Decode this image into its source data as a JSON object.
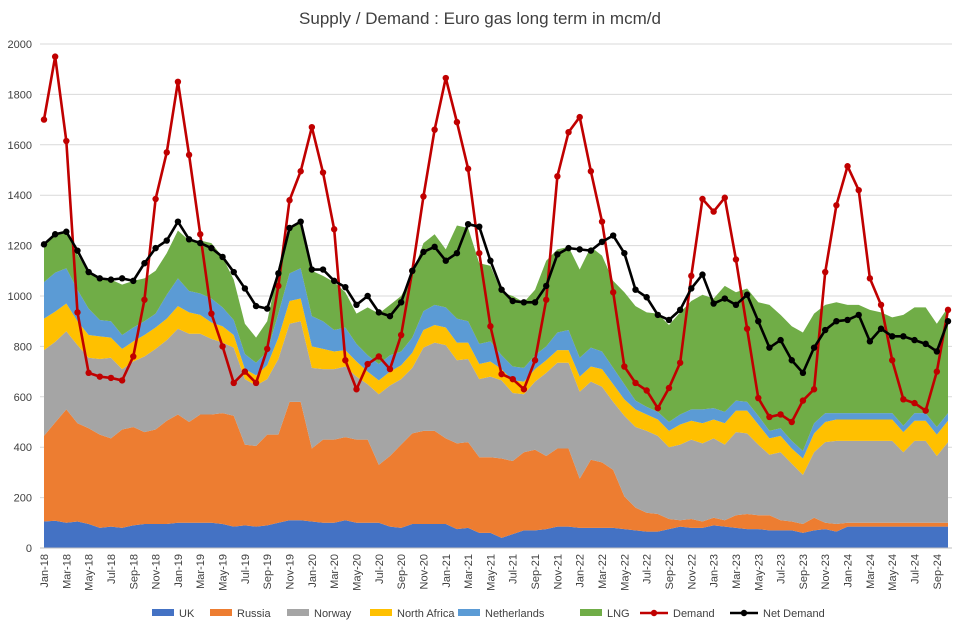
{
  "chart_data": {
    "type": "area",
    "title": "Supply / Demand : Euro gas long term in mcm/d",
    "xlabel": "",
    "ylabel": "",
    "ylim": [
      0,
      2000
    ],
    "yticks": [
      0,
      200,
      400,
      600,
      800,
      1000,
      1200,
      1400,
      1600,
      1800,
      2000
    ],
    "grid": true,
    "legend_position": "bottom",
    "x": [
      "Jan-18",
      "Feb-18",
      "Mar-18",
      "Apr-18",
      "May-18",
      "Jun-18",
      "Jul-18",
      "Aug-18",
      "Sep-18",
      "Oct-18",
      "Nov-18",
      "Dec-18",
      "Jan-19",
      "Feb-19",
      "Mar-19",
      "Apr-19",
      "May-19",
      "Jun-19",
      "Jul-19",
      "Aug-19",
      "Sep-19",
      "Oct-19",
      "Nov-19",
      "Dec-19",
      "Jan-20",
      "Feb-20",
      "Mar-20",
      "Apr-20",
      "May-20",
      "Jun-20",
      "Jul-20",
      "Aug-20",
      "Sep-20",
      "Oct-20",
      "Nov-20",
      "Dec-20",
      "Jan-21",
      "Feb-21",
      "Mar-21",
      "Apr-21",
      "May-21",
      "Jun-21",
      "Jul-21",
      "Aug-21",
      "Sep-21",
      "Oct-21",
      "Nov-21",
      "Dec-21",
      "Jan-22",
      "Feb-22",
      "Mar-22",
      "Apr-22",
      "May-22",
      "Jun-22",
      "Jul-22",
      "Aug-22",
      "Sep-22",
      "Oct-22",
      "Nov-22",
      "Dec-22",
      "Jan-23",
      "Feb-23",
      "Mar-23",
      "Apr-23",
      "May-23",
      "Jun-23",
      "Jul-23",
      "Aug-23",
      "Sep-23",
      "Oct-23",
      "Nov-23",
      "Dec-23",
      "Jan-24",
      "Feb-24",
      "Mar-24",
      "Apr-24",
      "May-24",
      "Jun-24",
      "Jul-24",
      "Aug-24",
      "Sep-24",
      "Oct-24"
    ],
    "xtick_labels": [
      "Jan-18",
      "Mar-18",
      "May-18",
      "Jul-18",
      "Sep-18",
      "Nov-18",
      "Jan-19",
      "Mar-19",
      "May-19",
      "Jul-19",
      "Sep-19",
      "Nov-19",
      "Jan-20",
      "Mar-20",
      "May-20",
      "Jul-20",
      "Sep-20",
      "Nov-20",
      "Jan-21",
      "Mar-21",
      "May-21",
      "Jul-21",
      "Sep-21",
      "Nov-21",
      "Jan-22",
      "Mar-22",
      "May-22",
      "Jul-22",
      "Sep-22",
      "Nov-22",
      "Jan-23",
      "Mar-23",
      "May-23",
      "Jul-23",
      "Sep-23",
      "Nov-23",
      "Jan-24",
      "Mar-24",
      "May-24",
      "Jul-24",
      "Sep-24"
    ],
    "stacked_series": [
      {
        "name": "UK",
        "color": "#4472C4",
        "values": [
          105,
          108,
          100,
          105,
          95,
          80,
          85,
          80,
          90,
          95,
          95,
          95,
          100,
          100,
          100,
          100,
          95,
          85,
          90,
          85,
          90,
          100,
          110,
          110,
          105,
          100,
          100,
          110,
          100,
          100,
          100,
          85,
          80,
          95,
          95,
          95,
          95,
          75,
          80,
          60,
          60,
          40,
          55,
          70,
          70,
          75,
          85,
          85,
          80,
          80,
          80,
          80,
          75,
          70,
          65,
          65,
          75,
          85,
          80,
          80,
          90,
          85,
          80,
          75,
          75,
          70,
          70,
          70,
          60,
          70,
          75,
          65,
          85,
          85,
          85,
          85,
          85,
          85,
          85,
          85,
          85,
          85
        ]
      },
      {
        "name": "Russia",
        "color": "#ED7D31",
        "values": [
          340,
          390,
          450,
          390,
          380,
          370,
          350,
          390,
          390,
          365,
          375,
          410,
          430,
          400,
          430,
          430,
          440,
          440,
          320,
          320,
          360,
          350,
          470,
          470,
          290,
          330,
          330,
          330,
          330,
          330,
          230,
          280,
          330,
          360,
          370,
          370,
          340,
          340,
          340,
          300,
          300,
          315,
          290,
          310,
          320,
          290,
          310,
          310,
          195,
          270,
          260,
          230,
          130,
          90,
          75,
          70,
          40,
          25,
          35,
          25,
          30,
          25,
          50,
          60,
          55,
          60,
          40,
          35,
          35,
          50,
          25,
          30,
          15,
          15,
          15,
          15,
          15,
          15,
          15,
          15,
          15,
          15
        ]
      },
      {
        "name": "Norway",
        "color": "#A5A5A5",
        "values": [
          340,
          320,
          310,
          310,
          280,
          300,
          320,
          240,
          260,
          300,
          320,
          320,
          340,
          350,
          320,
          300,
          280,
          270,
          260,
          240,
          220,
          300,
          310,
          320,
          320,
          280,
          280,
          280,
          250,
          220,
          280,
          280,
          260,
          260,
          330,
          350,
          370,
          330,
          330,
          310,
          320,
          310,
          270,
          230,
          270,
          330,
          340,
          340,
          345,
          310,
          300,
          270,
          320,
          320,
          325,
          310,
          285,
          300,
          315,
          310,
          315,
          300,
          330,
          320,
          280,
          240,
          270,
          230,
          195,
          260,
          320,
          330,
          325,
          325,
          325,
          325,
          325,
          280,
          325,
          325,
          265,
          320
        ]
      },
      {
        "name": "North Africa",
        "color": "#FFC000",
        "values": [
          125,
          120,
          110,
          95,
          90,
          90,
          80,
          80,
          80,
          85,
          85,
          85,
          90,
          85,
          75,
          65,
          65,
          50,
          40,
          40,
          55,
          85,
          90,
          90,
          85,
          80,
          70,
          65,
          60,
          50,
          55,
          55,
          55,
          60,
          70,
          70,
          70,
          70,
          65,
          60,
          60,
          45,
          50,
          50,
          50,
          50,
          50,
          50,
          60,
          60,
          70,
          70,
          65,
          70,
          65,
          65,
          65,
          80,
          75,
          80,
          75,
          85,
          85,
          90,
          80,
          65,
          65,
          60,
          65,
          75,
          80,
          85,
          85,
          85,
          85,
          85,
          85,
          80,
          80,
          80,
          85,
          85
        ]
      },
      {
        "name": "Netherlands",
        "color": "#5B9BD5",
        "values": [
          145,
          155,
          140,
          125,
          105,
          65,
          65,
          55,
          55,
          55,
          55,
          95,
          110,
          85,
          85,
          95,
          75,
          60,
          60,
          50,
          55,
          95,
          110,
          120,
          120,
          110,
          85,
          90,
          70,
          65,
          65,
          65,
          55,
          60,
          75,
          80,
          80,
          95,
          85,
          80,
          80,
          55,
          55,
          55,
          55,
          55,
          70,
          80,
          75,
          75,
          70,
          65,
          60,
          35,
          30,
          30,
          35,
          40,
          45,
          55,
          45,
          45,
          40,
          35,
          35,
          30,
          30,
          30,
          30,
          40,
          35,
          25,
          25,
          25,
          25,
          25,
          25,
          25,
          30,
          30,
          30,
          30
        ]
      },
      {
        "name": "LNG",
        "color": "#70AD47",
        "values": [
          150,
          150,
          150,
          140,
          140,
          165,
          165,
          200,
          185,
          170,
          170,
          165,
          190,
          200,
          210,
          220,
          200,
          160,
          120,
          100,
          120,
          180,
          180,
          180,
          180,
          180,
          190,
          140,
          120,
          190,
          200,
          200,
          220,
          250,
          270,
          280,
          230,
          370,
          370,
          320,
          300,
          250,
          280,
          260,
          260,
          340,
          330,
          330,
          350,
          400,
          380,
          345,
          365,
          375,
          375,
          390,
          385,
          405,
          430,
          455,
          435,
          500,
          430,
          450,
          450,
          500,
          450,
          455,
          470,
          435,
          430,
          440,
          430,
          430,
          410,
          400,
          380,
          440,
          420,
          420,
          410,
          420
        ]
      }
    ],
    "line_series": [
      {
        "name": "Demand",
        "color": "#C00000",
        "values": [
          1700,
          1950,
          1615,
          935,
          695,
          680,
          675,
          665,
          760,
          985,
          1385,
          1570,
          1850,
          1560,
          1245,
          930,
          800,
          655,
          700,
          655,
          790,
          1040,
          1380,
          1495,
          1670,
          1490,
          1265,
          745,
          630,
          730,
          760,
          710,
          845,
          1100,
          1395,
          1660,
          1865,
          1690,
          1505,
          1170,
          880,
          690,
          670,
          630,
          745,
          985,
          1475,
          1650,
          1710,
          1495,
          1295,
          1015,
          720,
          655,
          625,
          555,
          635,
          735,
          1080,
          1385,
          1335,
          1390,
          1145,
          870,
          595,
          520,
          530,
          500,
          585,
          630,
          1095,
          1360,
          1515,
          1420,
          1070,
          965,
          745,
          590,
          575,
          545,
          700,
          945
        ]
      },
      {
        "name": "Net Demand",
        "color": "#000000",
        "values": [
          1205,
          1245,
          1255,
          1180,
          1095,
          1070,
          1065,
          1070,
          1060,
          1130,
          1190,
          1220,
          1295,
          1225,
          1210,
          1190,
          1155,
          1095,
          1030,
          960,
          950,
          1090,
          1270,
          1295,
          1105,
          1105,
          1060,
          1035,
          965,
          1000,
          935,
          920,
          975,
          1100,
          1175,
          1195,
          1140,
          1170,
          1285,
          1275,
          1140,
          1025,
          980,
          975,
          975,
          1040,
          1165,
          1190,
          1185,
          1180,
          1215,
          1240,
          1170,
          1025,
          995,
          925,
          905,
          945,
          1030,
          1085,
          970,
          990,
          965,
          1005,
          900,
          795,
          825,
          745,
          695,
          795,
          865,
          900,
          905,
          925,
          820,
          870,
          840,
          840,
          825,
          810,
          780,
          900
        ]
      }
    ]
  }
}
